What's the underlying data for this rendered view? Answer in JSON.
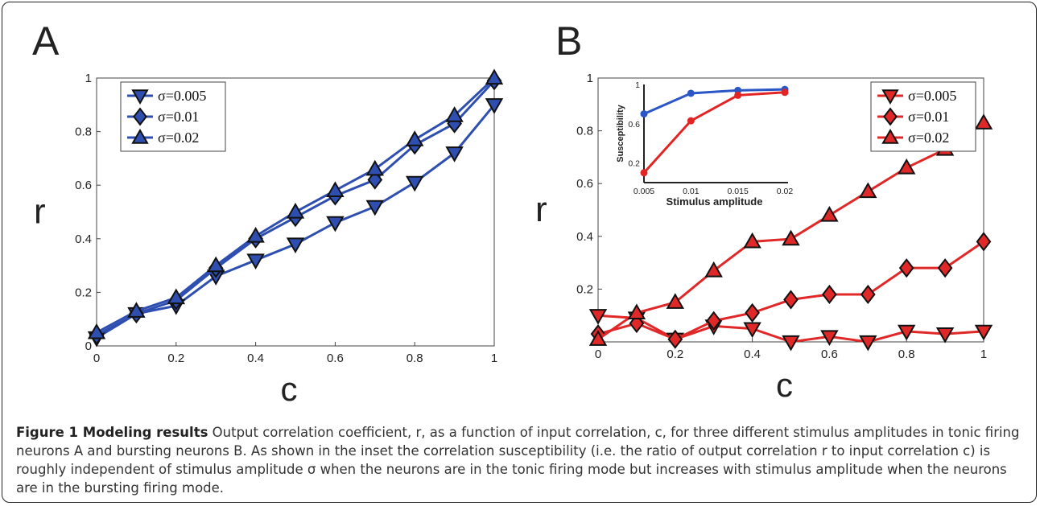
{
  "figure": {
    "caption_title": "Figure 1 Modeling results",
    "caption_text": "Output correlation coefficient, r, as a function of input correlation, c, for three different stimulus amplitudes in tonic firing neurons A and bursting neurons B. As shown in the inset the correlation susceptibility (i.e. the ratio of output correlation r to input correlation c) is roughly independent of stimulus amplitude σ when the neurons are in the tonic firing mode but increases with stimulus amplitude when the neurons are in the bursting firing mode."
  },
  "colors": {
    "panel_a": "#2e4fb0",
    "panel_b": "#e02828",
    "inset_blue": "#2b56c6",
    "inset_red": "#e32424"
  },
  "chart_data": [
    {
      "panel_label": "A",
      "type": "line",
      "xlabel": "c",
      "ylabel": "r",
      "xlim": [
        0,
        1
      ],
      "ylim": [
        0,
        1
      ],
      "x_ticks": [
        "0",
        "0.2",
        "0.4",
        "0.6",
        "0.8",
        "1"
      ],
      "y_ticks": [
        "0",
        "0.2",
        "0.4",
        "0.6",
        "0.8",
        "1"
      ],
      "legend_position": "top-left",
      "x": [
        0,
        0.1,
        0.2,
        0.3,
        0.4,
        0.5,
        0.6,
        0.7,
        0.8,
        0.9,
        1
      ],
      "series": [
        {
          "name": "σ=0.005",
          "marker": "triangle-down",
          "values": [
            0.03,
            0.12,
            0.15,
            0.26,
            0.32,
            0.38,
            0.46,
            0.52,
            0.61,
            0.72,
            0.9
          ]
        },
        {
          "name": "σ=0.01",
          "marker": "diamond",
          "values": [
            0.04,
            0.12,
            0.17,
            0.29,
            0.4,
            0.48,
            0.56,
            0.62,
            0.75,
            0.83,
            0.99
          ]
        },
        {
          "name": "σ=0.02",
          "marker": "triangle-up",
          "values": [
            0.05,
            0.13,
            0.18,
            0.3,
            0.41,
            0.5,
            0.58,
            0.66,
            0.77,
            0.86,
            1.0
          ]
        }
      ]
    },
    {
      "panel_label": "B",
      "type": "line",
      "xlabel": "c",
      "ylabel": "r",
      "xlim": [
        0,
        1
      ],
      "ylim": [
        0,
        1
      ],
      "x_ticks": [
        "0",
        "0.2",
        "0.4",
        "0.6",
        "0.8",
        "1"
      ],
      "y_ticks": [
        "0.2",
        "0.4",
        "0.6",
        "0.8",
        "1"
      ],
      "legend_position": "top-right",
      "x": [
        0,
        0.1,
        0.2,
        0.3,
        0.4,
        0.5,
        0.6,
        0.7,
        0.8,
        0.9,
        1
      ],
      "series": [
        {
          "name": "σ=0.005",
          "marker": "triangle-down",
          "values": [
            0.1,
            0.09,
            0.01,
            0.06,
            0.05,
            0.0,
            0.02,
            0.0,
            0.04,
            0.03,
            0.04
          ]
        },
        {
          "name": "σ=0.01",
          "marker": "diamond",
          "values": [
            0.03,
            0.07,
            0.01,
            0.08,
            0.11,
            0.16,
            0.18,
            0.18,
            0.28,
            0.28,
            0.38
          ]
        },
        {
          "name": "σ=0.02",
          "marker": "triangle-up",
          "values": [
            0.01,
            0.11,
            0.15,
            0.27,
            0.38,
            0.39,
            0.48,
            0.57,
            0.66,
            0.73,
            0.83
          ]
        }
      ],
      "inset": {
        "type": "line",
        "xlabel": "Stimulus amplitude",
        "ylabel": "Susceptibility",
        "xlim": [
          0.005,
          0.02
        ],
        "ylim": [
          0,
          1
        ],
        "x_ticks": [
          "0.005",
          "0.01",
          "0.015",
          "0.02"
        ],
        "y_ticks": [
          "0.2",
          "0.6",
          "1"
        ],
        "x": [
          0.005,
          0.01,
          0.015,
          0.02
        ],
        "series": [
          {
            "color_key": "blue",
            "values": [
              0.7,
              0.91,
              0.94,
              0.95
            ]
          },
          {
            "color_key": "red",
            "values": [
              0.1,
              0.63,
              0.89,
              0.92
            ]
          }
        ]
      }
    }
  ]
}
